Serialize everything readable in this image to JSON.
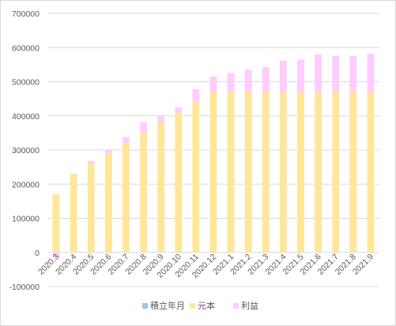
{
  "chart_data": {
    "type": "bar",
    "stacked": true,
    "categories": [
      "2020.3",
      "2020.4",
      "2020.5",
      "2020.6",
      "2020.7",
      "2020.8",
      "2020.9",
      "2020.10",
      "2020.11",
      "2020.12",
      "2021.1",
      "2021.2",
      "2021.3",
      "2021.4",
      "2021.5",
      "2021.6",
      "2021.7",
      "2021.8",
      "2021.9"
    ],
    "series": [
      {
        "name": "積立年月",
        "color": "#9dc3e6",
        "values": [
          0,
          0,
          0,
          0,
          0,
          0,
          0,
          0,
          0,
          0,
          0,
          0,
          0,
          0,
          0,
          0,
          0,
          0,
          0
        ]
      },
      {
        "name": "元本",
        "color": "#ffe699",
        "values": [
          170000,
          230000,
          260000,
          290000,
          320000,
          350000,
          380000,
          410000,
          440000,
          470000,
          470000,
          470000,
          470000,
          470000,
          470000,
          470000,
          470000,
          470000,
          470000
        ]
      },
      {
        "name": "利益",
        "color": "#ffccff",
        "values": [
          -15000,
          0,
          8000,
          10000,
          18000,
          32000,
          18000,
          15000,
          38000,
          45000,
          55000,
          65000,
          72000,
          92000,
          95000,
          110000,
          105000,
          105000,
          112000
        ]
      }
    ],
    "ylim": [
      -100000,
      700000
    ],
    "yticks": [
      -100000,
      0,
      100000,
      200000,
      300000,
      400000,
      500000,
      600000,
      700000
    ],
    "grid": true,
    "legend": "bottom"
  }
}
